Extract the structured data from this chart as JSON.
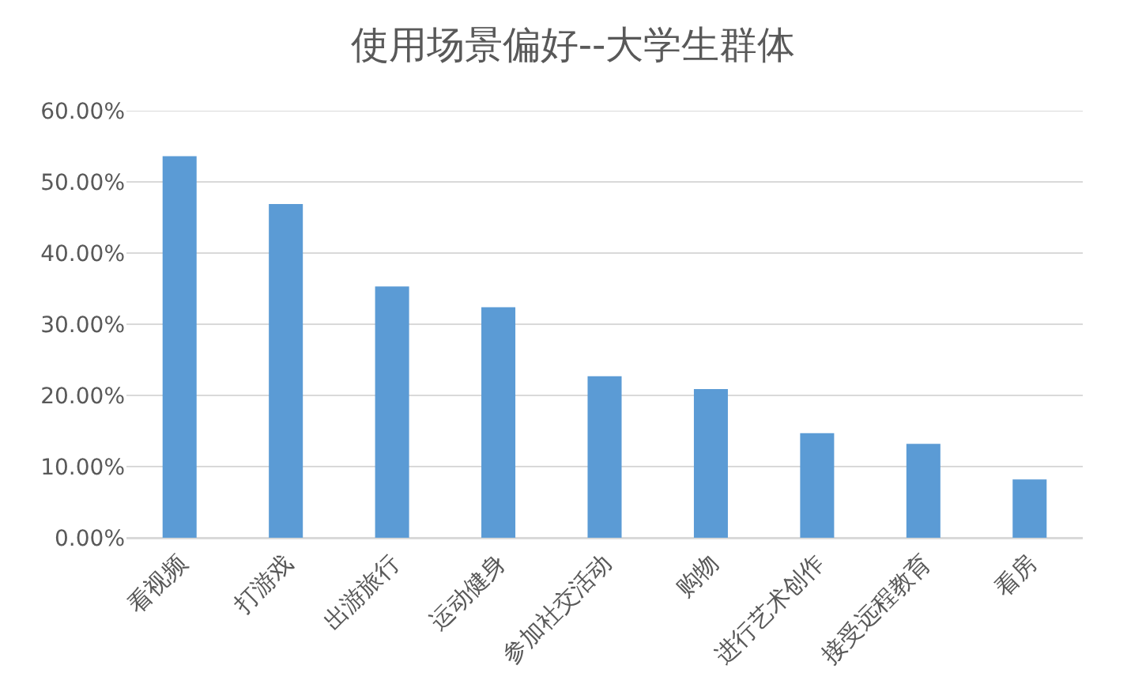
{
  "chart_data": {
    "type": "bar",
    "title": "使用场景偏好--大学生群体",
    "categories": [
      "看视频",
      "打游戏",
      "出游旅行",
      "运动健身",
      "参加社交活动",
      "购物",
      "进行艺术创作",
      "接受远程教育",
      "看房"
    ],
    "values": [
      53.6,
      46.9,
      35.3,
      32.4,
      22.7,
      20.9,
      14.7,
      13.2,
      8.2
    ],
    "color": "#5b9bd5",
    "ylim": [
      0,
      60
    ],
    "yticks": [
      {
        "value": 0,
        "label": "0.00%"
      },
      {
        "value": 10,
        "label": "10.00%"
      },
      {
        "value": 20,
        "label": "20.00%"
      },
      {
        "value": 30,
        "label": "30.00%"
      },
      {
        "value": 40,
        "label": "40.00%"
      },
      {
        "value": 50,
        "label": "50.00%"
      },
      {
        "value": 60,
        "label": "60.00%"
      }
    ],
    "grid": "y"
  }
}
